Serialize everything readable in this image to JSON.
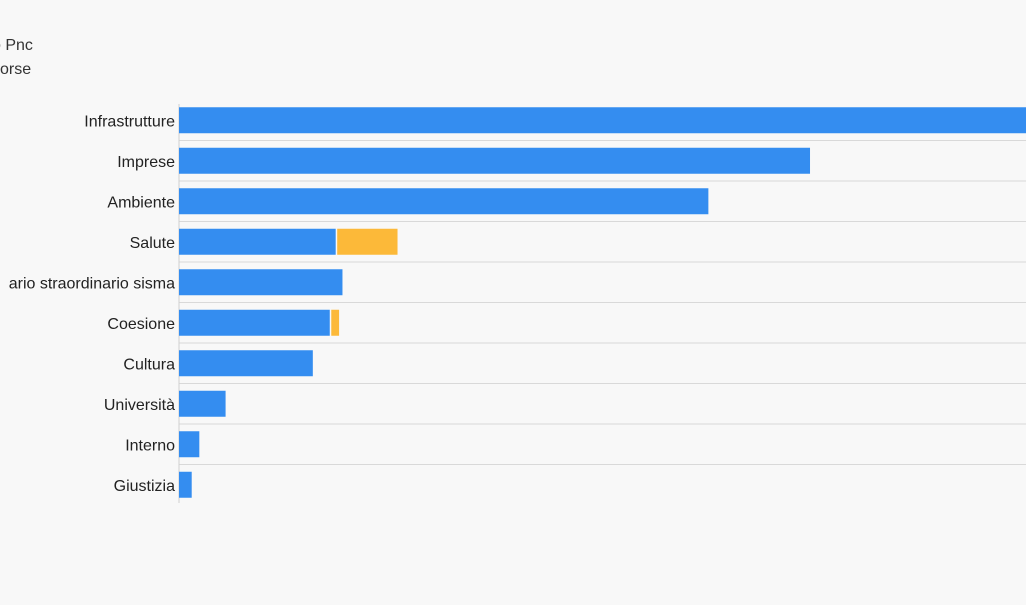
{
  "legend_fragments": [
    "o Pnc",
    "sorse"
  ],
  "chart_data": {
    "type": "bar",
    "orientation": "horizontal",
    "stacked": true,
    "categories": [
      "Infrastrutture",
      "Imprese",
      "Ambiente",
      "Salute",
      "ario straordinario sisma",
      "Coesione",
      "Cultura",
      "Università",
      "Interno",
      "Giustizia"
    ],
    "series": [
      {
        "color": "#348df0",
        "values": [
          100,
          74.5,
          62.5,
          18.5,
          19.3,
          17.8,
          15.8,
          5.5,
          2.4,
          1.5
        ]
      },
      {
        "color": "#fcb939",
        "values": [
          0,
          0,
          0,
          7.3,
          0,
          1.1,
          0,
          0,
          0,
          0
        ]
      }
    ],
    "xlim": [
      0,
      100
    ],
    "grid": true,
    "legend_position": "top-left"
  }
}
